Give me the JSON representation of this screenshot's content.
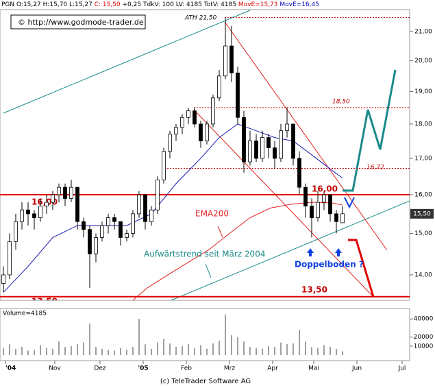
{
  "chart_data": {
    "type": "candlestick",
    "header": [
      {
        "text": "PGN O:15,27 H:15,70 L:15,27",
        "color": "#000000"
      },
      {
        "text": "C: 15,50",
        "color": "#e00000"
      },
      {
        "text": "+0,25 TdkV: 100 LV: 4185 TotV: 4185",
        "color": "#000000"
      },
      {
        "text": "MovE=15,73",
        "color": "#e00000"
      },
      {
        "text": "MovE=16,45",
        "color": "#0000c0"
      }
    ],
    "watermark": "© http://www.godmode-trader.de",
    "footer": "(c) TeleTrader Software AG",
    "log_scale": true,
    "xlim": [
      0,
      197
    ],
    "xticks": [
      {
        "value": 1,
        "label": "'04"
      },
      {
        "value": 25,
        "label": "Nov"
      },
      {
        "value": 47,
        "label": "Dez"
      },
      {
        "value": 68,
        "label": "'05"
      },
      {
        "value": 89,
        "label": "Feb"
      },
      {
        "value": 110,
        "label": "Mrz"
      },
      {
        "value": 131,
        "label": "Apr"
      },
      {
        "value": 151,
        "label": "Mai"
      },
      {
        "value": 172,
        "label": "Jun"
      },
      {
        "value": 194,
        "label": "Jul"
      }
    ],
    "ylim": [
      13.42,
      21.78
    ],
    "yticks": [
      {
        "value": 14,
        "label": "14,00"
      },
      {
        "value": 15,
        "label": "15,00"
      },
      {
        "value": 16,
        "label": "16,00"
      },
      {
        "value": 17,
        "label": "17,00"
      },
      {
        "value": 18,
        "label": "18,00"
      },
      {
        "value": 19,
        "label": "19,00"
      },
      {
        "value": 20,
        "label": "20,00"
      },
      {
        "value": 21,
        "label": "21,00"
      }
    ],
    "x": [
      0,
      3,
      6,
      9,
      12,
      15,
      18,
      21,
      24,
      27,
      30,
      33,
      36,
      39,
      42,
      45,
      48,
      51,
      54,
      57,
      60,
      63,
      66,
      69,
      72,
      75,
      78,
      81,
      84,
      87,
      90,
      93,
      96,
      99,
      102,
      105,
      108,
      111,
      114,
      117,
      120,
      123,
      126,
      129,
      132,
      135,
      138,
      141,
      144,
      147,
      150,
      153,
      156,
      159,
      162,
      165
    ],
    "open": [
      13.8,
      14.0,
      14.8,
      15.3,
      15.6,
      15.5,
      15.4,
      15.7,
      15.8,
      16.0,
      16.2,
      15.9,
      16.2,
      15.3,
      15.1,
      14.5,
      14.9,
      15.2,
      15.4,
      15.3,
      14.9,
      15.0,
      15.5,
      16.0,
      15.3,
      15.6,
      16.4,
      17.2,
      17.7,
      17.9,
      18.2,
      18.4,
      18.0,
      17.5,
      18.0,
      18.8,
      19.5,
      20.5,
      19.6,
      18.2,
      16.9,
      17.5,
      17.0,
      17.6,
      17.3,
      17.0,
      17.8,
      18.0,
      17.0,
      16.2,
      15.7,
      15.4,
      15.8,
      16.0,
      15.5,
      15.27
    ],
    "high": [
      14.2,
      15.0,
      15.5,
      15.8,
      15.8,
      15.6,
      15.9,
      16.0,
      16.1,
      16.3,
      16.3,
      16.4,
      16.2,
      15.4,
      15.2,
      15.0,
      15.3,
      15.5,
      15.5,
      15.3,
      15.1,
      15.6,
      16.1,
      16.0,
      15.7,
      16.5,
      17.3,
      17.8,
      18.0,
      18.3,
      18.5,
      18.5,
      18.1,
      18.1,
      18.9,
      19.7,
      21.5,
      21.2,
      19.8,
      18.4,
      17.8,
      17.7,
      17.8,
      17.7,
      17.5,
      18.0,
      18.5,
      18.0,
      17.2,
      16.3,
      15.9,
      16.1,
      16.1,
      16.0,
      15.6,
      15.7
    ],
    "low": [
      13.6,
      13.9,
      14.6,
      15.1,
      15.2,
      15.1,
      15.3,
      15.5,
      15.6,
      15.8,
      15.7,
      15.8,
      15.1,
      14.9,
      13.7,
      14.3,
      14.8,
      15.0,
      15.1,
      14.7,
      14.8,
      14.9,
      15.4,
      15.1,
      15.2,
      15.5,
      16.3,
      17.0,
      17.5,
      17.7,
      18.0,
      17.9,
      17.3,
      17.4,
      17.9,
      18.7,
      19.4,
      19.3,
      18.0,
      16.6,
      16.8,
      16.9,
      16.9,
      17.0,
      16.7,
      16.9,
      17.6,
      16.8,
      16.0,
      15.4,
      14.9,
      15.3,
      15.6,
      15.3,
      15.0,
      15.27
    ],
    "close": [
      14.0,
      14.8,
      15.3,
      15.6,
      15.5,
      15.4,
      15.7,
      15.8,
      16.0,
      16.2,
      15.9,
      16.2,
      15.3,
      15.1,
      14.5,
      14.9,
      15.2,
      15.4,
      15.3,
      14.9,
      15.0,
      15.5,
      16.0,
      15.3,
      15.6,
      16.4,
      17.2,
      17.7,
      17.9,
      18.2,
      18.4,
      18.0,
      17.5,
      18.0,
      18.8,
      19.5,
      20.5,
      19.6,
      18.2,
      16.9,
      17.5,
      17.0,
      17.6,
      17.3,
      17.0,
      17.8,
      18.0,
      17.0,
      16.2,
      15.7,
      15.4,
      15.8,
      16.0,
      15.5,
      15.3,
      15.5
    ],
    "last_price": {
      "value": 15.5,
      "label": "15,50"
    },
    "lines": [
      {
        "color": "#1818b0",
        "x": [
          0,
          12,
          24,
          36,
          48,
          60,
          72,
          84,
          96,
          105,
          114,
          123,
          132,
          141,
          150,
          159,
          165
        ],
        "values": [
          13.6,
          14.2,
          14.9,
          15.2,
          15.2,
          15.2,
          15.5,
          16.3,
          17.0,
          17.6,
          18.0,
          17.8,
          17.6,
          17.5,
          17.1,
          16.7,
          16.45
        ]
      },
      {
        "color": "#e02020",
        "x": [
          63,
          70,
          80,
          90,
          100,
          110,
          120,
          130,
          140,
          150,
          160,
          165
        ],
        "values": [
          13.42,
          13.7,
          14.0,
          14.3,
          14.6,
          15.0,
          15.4,
          15.65,
          15.75,
          15.8,
          15.78,
          15.73
        ]
      }
    ],
    "levels": [
      {
        "value": 21.5,
        "label": "ATH 21,50",
        "style": "dashed"
      },
      {
        "value": 18.5,
        "label": "18,50",
        "style": "dashed"
      },
      {
        "value": 16.72,
        "label": "16,72",
        "style": "dashed"
      },
      {
        "value": 16.0,
        "label": "16,00",
        "left_label": "16,00",
        "style": "solid"
      },
      {
        "value": 13.5,
        "label": "13,50",
        "left_label": "13,50",
        "style": "solid"
      }
    ],
    "annotations": [
      "EMA200",
      "Aufwärtstrend seit März 2004",
      "Doppelboden ?"
    ],
    "volume": {
      "label": "Volume=4185",
      "ylim": [
        0,
        50000
      ],
      "yticks": [
        10000,
        20000,
        40000
      ],
      "color": "#808080",
      "values": [
        8000,
        12000,
        7000,
        9000,
        5000,
        6000,
        11000,
        8000,
        7000,
        15000,
        9000,
        10000,
        12000,
        14000,
        35000,
        9000,
        7000,
        6000,
        5000,
        8000,
        6000,
        9000,
        40000,
        12000,
        7000,
        14000,
        18000,
        13000,
        9000,
        10000,
        12000,
        8000,
        11000,
        7000,
        13000,
        16000,
        45000,
        22000,
        20000,
        15000,
        9000,
        8000,
        7000,
        10000,
        9000,
        14000,
        12000,
        13000,
        28000,
        15000,
        9000,
        8000,
        11000,
        9000,
        7000,
        4185
      ]
    }
  }
}
